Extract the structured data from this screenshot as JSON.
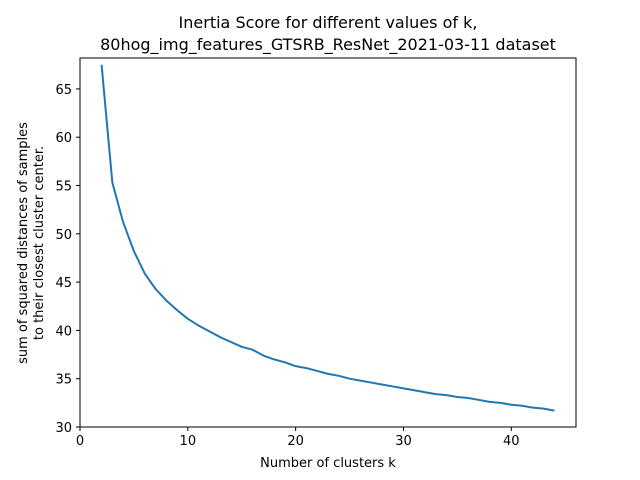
{
  "chart_data": {
    "type": "line",
    "title": [
      "Inertia Score for different values of k,",
      "80hog_img_features_GTSRB_ResNet_2021-03-11 dataset"
    ],
    "xlabel": "Number of clusters k",
    "ylabel": [
      "sum of squared distances of samples",
      "to their closest cluster center."
    ],
    "xlim": [
      0,
      46
    ],
    "ylim": [
      30,
      68.2
    ],
    "xticks": [
      0,
      10,
      20,
      30,
      40
    ],
    "yticks": [
      30,
      35,
      40,
      45,
      50,
      55,
      60,
      65
    ],
    "grid": false,
    "line_color": "#1f77b4",
    "series": [
      {
        "x": [
          2,
          3,
          4,
          5,
          6,
          7,
          8,
          9,
          10,
          11,
          12,
          13,
          14,
          15,
          16,
          17,
          18,
          19,
          20,
          21,
          22,
          23,
          24,
          25,
          26,
          27,
          28,
          29,
          30,
          31,
          32,
          33,
          34,
          35,
          36,
          37,
          38,
          39,
          40,
          41,
          42,
          43,
          44
        ],
        "y": [
          67.5,
          55.3,
          51.2,
          48.2,
          45.9,
          44.3,
          43.1,
          42.1,
          41.2,
          40.5,
          39.9,
          39.3,
          38.8,
          38.3,
          38.0,
          37.4,
          37.0,
          36.7,
          36.3,
          36.1,
          35.8,
          35.5,
          35.3,
          35.0,
          34.8,
          34.6,
          34.4,
          34.2,
          34.0,
          33.8,
          33.6,
          33.4,
          33.3,
          33.1,
          33.0,
          32.8,
          32.6,
          32.5,
          32.3,
          32.2,
          32.0,
          31.9,
          31.7
        ]
      }
    ]
  }
}
